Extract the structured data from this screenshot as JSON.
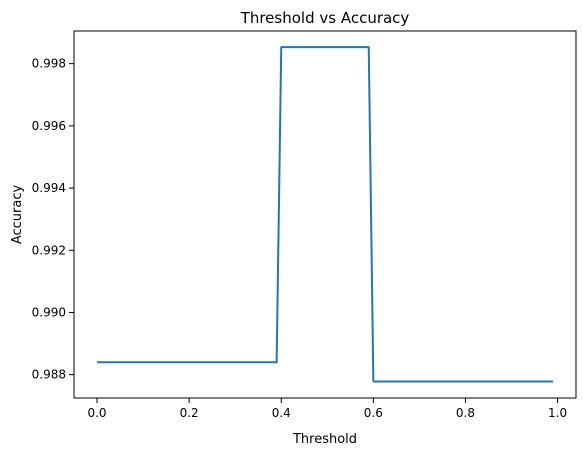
{
  "chart_data": {
    "type": "line",
    "title": "Threshold vs Accuracy",
    "xlabel": "Threshold",
    "ylabel": "Accuracy",
    "xlim": [
      -0.05,
      1.04
    ],
    "ylim": [
      0.98725,
      0.99905
    ],
    "x_ticks": [
      0.0,
      0.2,
      0.4,
      0.6,
      0.8,
      1.0
    ],
    "x_tick_labels": [
      "0.0",
      "0.2",
      "0.4",
      "0.6",
      "0.8",
      "1.0"
    ],
    "y_ticks": [
      0.988,
      0.99,
      0.992,
      0.994,
      0.996,
      0.998
    ],
    "y_tick_labels": [
      "0.988",
      "0.990",
      "0.992",
      "0.994",
      "0.996",
      "0.998"
    ],
    "grid": false,
    "series": [
      {
        "color": "#1f77b4",
        "x": [
          0.0,
          0.39,
          0.4,
          0.59,
          0.6,
          0.99
        ],
        "y": [
          0.9884,
          0.9884,
          0.99853,
          0.99853,
          0.98778,
          0.98778
        ]
      }
    ]
  }
}
